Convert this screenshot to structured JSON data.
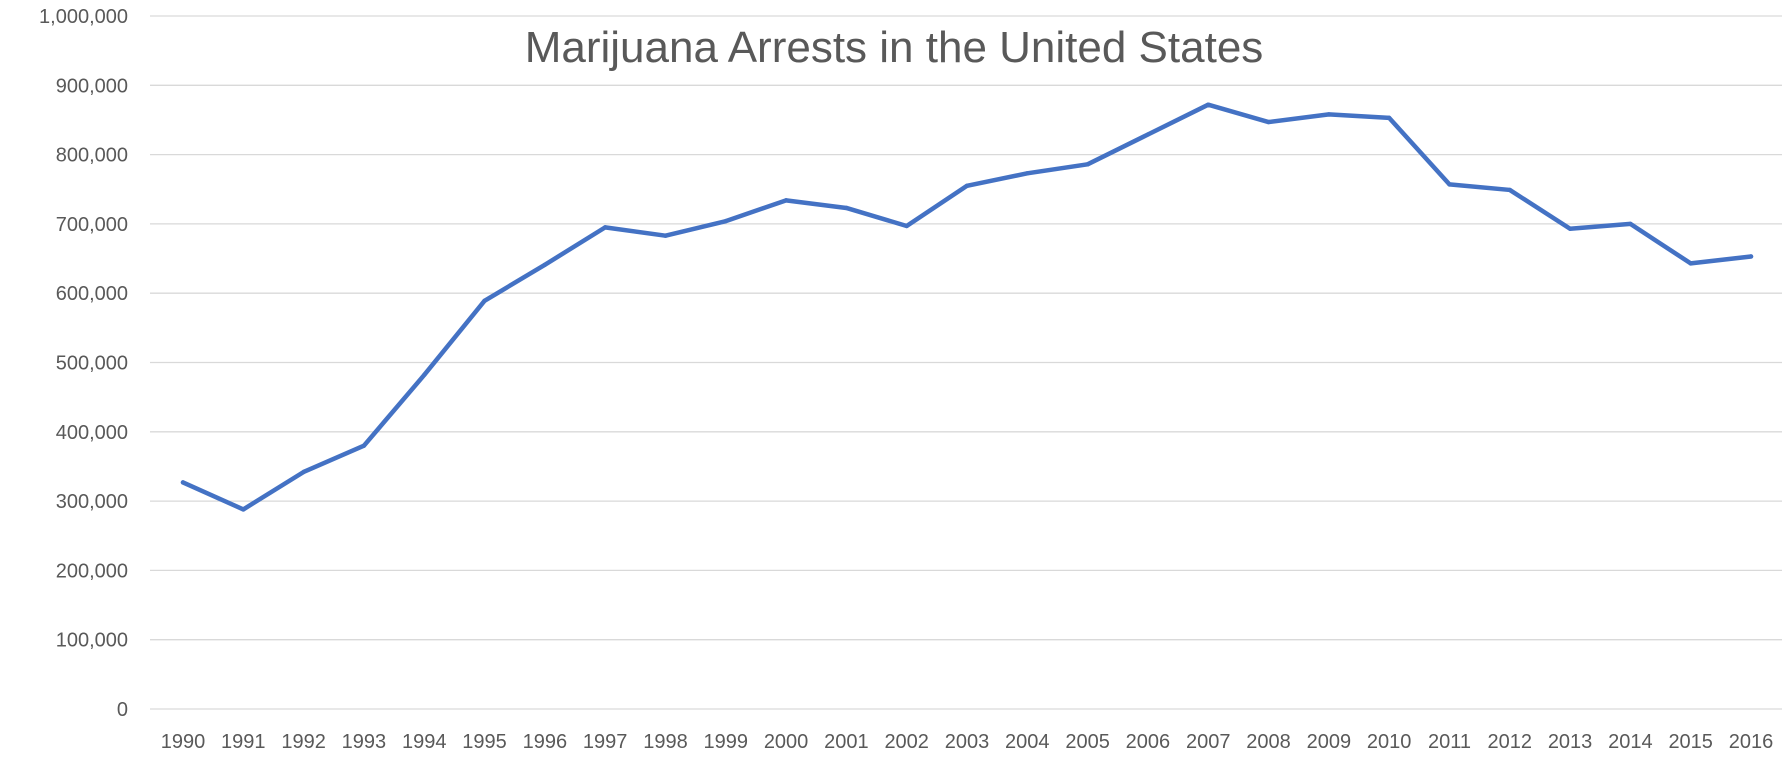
{
  "colors": {
    "series": "#4472c4",
    "gridline": "#d9d9d9",
    "text": "#595959"
  },
  "chart_data": {
    "type": "line",
    "title": "Marijuana Arrests in the United States",
    "xlabel": "",
    "ylabel": "",
    "ylim": [
      0,
      1000000
    ],
    "grid": true,
    "legend": "none",
    "y_ticks": [
      0,
      100000,
      200000,
      300000,
      400000,
      500000,
      600000,
      700000,
      800000,
      900000,
      1000000
    ],
    "y_tick_labels": [
      "0",
      "100,000",
      "200,000",
      "300,000",
      "400,000",
      "500,000",
      "600,000",
      "700,000",
      "800,000",
      "900,000",
      "1,000,000"
    ],
    "categories": [
      "1990",
      "1991",
      "1992",
      "1993",
      "1994",
      "1995",
      "1996",
      "1997",
      "1998",
      "1999",
      "2000",
      "2001",
      "2002",
      "2003",
      "2004",
      "2005",
      "2006",
      "2007",
      "2008",
      "2009",
      "2010",
      "2011",
      "2012",
      "2013",
      "2014",
      "2015",
      "2016"
    ],
    "series": [
      {
        "name": "Marijuana Arrests",
        "values": [
          327000,
          288000,
          342000,
          380000,
          482000,
          589000,
          641000,
          695000,
          683000,
          704000,
          734000,
          723000,
          697000,
          755000,
          773000,
          786000,
          829000,
          872000,
          847000,
          858000,
          853000,
          757000,
          749000,
          693000,
          700000,
          643000,
          653000
        ]
      }
    ]
  }
}
